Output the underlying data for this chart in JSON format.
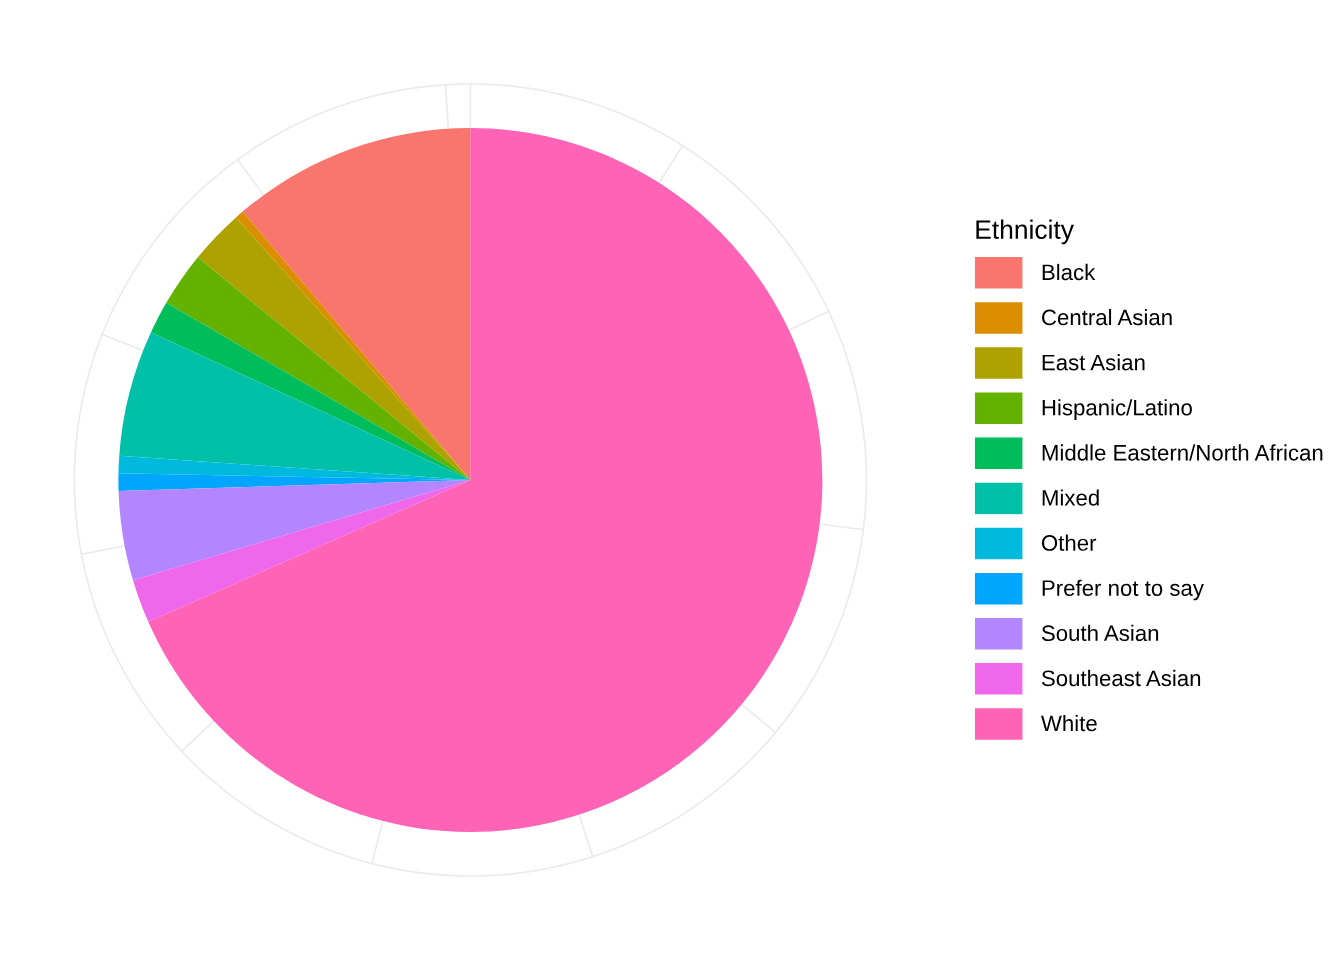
{
  "chart_data": {
    "type": "pie",
    "legend_title": "Ethnicity",
    "legend": "right",
    "grid": true,
    "categories": [
      "Black",
      "Central Asian",
      "East Asian",
      "Hispanic/Latino",
      "Middle Eastern/North African",
      "Mixed",
      "Other",
      "Prefer not to say",
      "South Asian",
      "Southeast Asian",
      "White"
    ],
    "values": [
      11.2,
      0.4,
      2.5,
      2.5,
      1.5,
      5.8,
      0.8,
      0.8,
      4.1,
      2.0,
      68.4
    ],
    "colors": [
      "#f8766d",
      "#db8e00",
      "#aea200",
      "#64b200",
      "#00bd5c",
      "#00c1a7",
      "#00bade",
      "#00a6ff",
      "#b385ff",
      "#ef67eb",
      "#ff63b6"
    ]
  }
}
